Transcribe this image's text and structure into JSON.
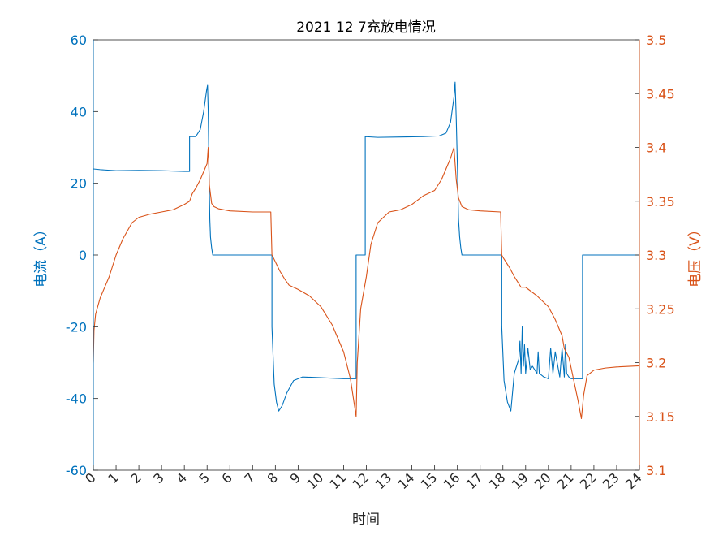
{
  "chart_data": {
    "type": "line",
    "title": "2021  12   7充放电情况",
    "xlabel": "时间",
    "ylabel_left": "电流（A）",
    "ylabel_right": "电压（V）",
    "xlim": [
      0,
      24
    ],
    "ylim_left": [
      -60,
      60
    ],
    "ylim_right": [
      3.1,
      3.5
    ],
    "xticks": [
      "0",
      "1",
      "2",
      "3",
      "4",
      "5",
      "6",
      "7",
      "8",
      "9",
      "10",
      "11",
      "12",
      "13",
      "14",
      "15",
      "16",
      "17",
      "18",
      "19",
      "20",
      "21",
      "22",
      "23",
      "24"
    ],
    "yticks_left": [
      "-60",
      "-40",
      "-20",
      "0",
      "20",
      "40",
      "60"
    ],
    "yticks_right": [
      "3.1",
      "3.15",
      "3.2",
      "3.25",
      "3.3",
      "3.35",
      "3.4",
      "3.45",
      "3.5"
    ],
    "grid": false,
    "colors": {
      "current": "#0072BD",
      "voltage": "#D95319"
    },
    "series": [
      {
        "name": "电流",
        "axis": "left",
        "x": [
          0,
          0.3,
          1.0,
          2.0,
          3.0,
          4.0,
          4.23,
          4.23,
          4.5,
          4.7,
          4.85,
          4.98,
          5.02,
          5.05,
          5.08,
          5.12,
          5.15,
          5.2,
          5.25,
          5.25,
          7.85,
          7.85,
          7.95,
          8.05,
          8.15,
          8.3,
          8.5,
          8.8,
          9.2,
          10.0,
          11.0,
          11.55,
          11.55,
          11.95,
          11.95,
          12.5,
          13.5,
          14.5,
          15.2,
          15.5,
          15.7,
          15.85,
          15.9,
          15.95,
          16.0,
          16.05,
          16.1,
          16.15,
          16.2,
          16.2,
          17.95,
          17.95,
          18.05,
          18.2,
          18.35,
          18.4,
          18.5,
          18.7,
          18.75,
          18.8,
          18.85,
          18.9,
          18.95,
          19.0,
          19.1,
          19.2,
          19.3,
          19.5,
          19.55,
          19.6,
          19.8,
          20.0,
          20.1,
          20.2,
          20.3,
          20.5,
          20.6,
          20.7,
          20.75,
          20.8,
          20.9,
          21.0,
          21.5,
          21.5,
          24.0
        ],
        "values": [
          24,
          23.8,
          23.5,
          23.6,
          23.5,
          23.3,
          23.3,
          33,
          33,
          35,
          40,
          46,
          47.3,
          40,
          25,
          10,
          5,
          2,
          0,
          0,
          0,
          -20,
          -36,
          -41,
          -43.5,
          -42,
          -38.5,
          -35,
          -34,
          -34.2,
          -34.5,
          -34.5,
          0,
          0,
          33,
          32.8,
          32.9,
          33,
          33.2,
          34,
          37,
          44,
          48.2,
          38,
          25,
          10,
          5,
          2,
          0,
          0,
          0,
          -20,
          -35,
          -41,
          -43.5,
          -40,
          -33,
          -29,
          -24,
          -33,
          -20,
          -31,
          -25,
          -33,
          -26,
          -32,
          -31,
          -33,
          -27,
          -33,
          -34,
          -34.5,
          -26,
          -33,
          -27,
          -34,
          -26,
          -34,
          -25,
          -33,
          -34,
          -34.5,
          -34.5,
          0,
          0
        ]
      },
      {
        "name": "电压",
        "axis": "right",
        "x": [
          0,
          0.03,
          0.1,
          0.3,
          0.7,
          1.0,
          1.3,
          1.7,
          2.0,
          2.5,
          3.0,
          3.5,
          4.0,
          4.23,
          4.35,
          4.5,
          4.7,
          4.9,
          5.0,
          5.05,
          5.1,
          5.2,
          5.3,
          5.5,
          6.0,
          7.0,
          7.8,
          7.85,
          7.9,
          8.2,
          8.4,
          8.6,
          8.8,
          9.0,
          9.5,
          10.0,
          10.5,
          11.0,
          11.3,
          11.55,
          11.6,
          11.75,
          12.0,
          12.2,
          12.5,
          13.0,
          13.5,
          14.0,
          14.5,
          15.0,
          15.3,
          15.5,
          15.7,
          15.85,
          15.95,
          16.05,
          16.2,
          16.5,
          17.0,
          17.9,
          17.95,
          18.0,
          18.3,
          18.5,
          18.8,
          19.0,
          19.5,
          20.0,
          20.3,
          20.6,
          20.7,
          20.9,
          21.1,
          21.3,
          21.45,
          21.55,
          21.7,
          22.0,
          22.5,
          23.0,
          24.0
        ],
        "values": [
          3.2,
          3.23,
          3.245,
          3.26,
          3.28,
          3.3,
          3.315,
          3.33,
          3.335,
          3.338,
          3.34,
          3.342,
          3.347,
          3.35,
          3.357,
          3.362,
          3.37,
          3.38,
          3.385,
          3.4,
          3.365,
          3.348,
          3.345,
          3.343,
          3.341,
          3.34,
          3.34,
          3.3,
          3.298,
          3.285,
          3.278,
          3.272,
          3.27,
          3.268,
          3.262,
          3.252,
          3.235,
          3.21,
          3.185,
          3.15,
          3.2,
          3.25,
          3.28,
          3.31,
          3.33,
          3.34,
          3.342,
          3.347,
          3.355,
          3.36,
          3.37,
          3.38,
          3.39,
          3.4,
          3.37,
          3.353,
          3.345,
          3.342,
          3.341,
          3.34,
          3.3,
          3.298,
          3.288,
          3.28,
          3.27,
          3.27,
          3.262,
          3.252,
          3.24,
          3.225,
          3.213,
          3.205,
          3.185,
          3.165,
          3.148,
          3.17,
          3.188,
          3.193,
          3.195,
          3.196,
          3.197
        ]
      }
    ]
  }
}
